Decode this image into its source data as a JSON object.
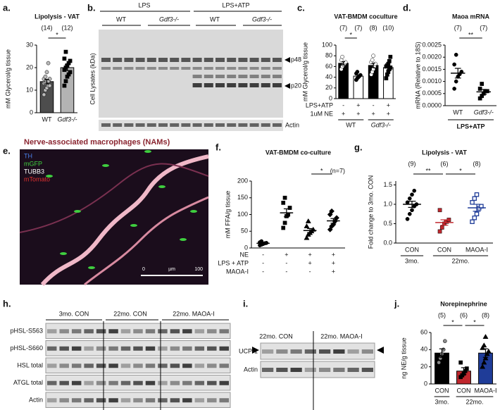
{
  "panel_labels": [
    "a.",
    "b.",
    "c.",
    "d.",
    "e.",
    "f.",
    "g.",
    "h.",
    "i.",
    "j."
  ],
  "chart_data": [
    {
      "type": "bar",
      "title": "Lipolysis - VAT",
      "ylabel": "mM Glycerol/g tissue",
      "categories": [
        "WT",
        "Gdf3-/-"
      ],
      "values": [
        13.8,
        20
      ],
      "errors": [
        1,
        1.3
      ],
      "points": [
        [
          8,
          10,
          11,
          12,
          12,
          13,
          13,
          14,
          14,
          15,
          15,
          16,
          18,
          22
        ],
        [
          12,
          14,
          16,
          17,
          18,
          19,
          20,
          21,
          22,
          23,
          24,
          27
        ]
      ],
      "n_labels": [
        "(14)",
        "(12)"
      ],
      "colors": [
        "#4d4d4d",
        "#b3b3b3"
      ],
      "point_colors": [
        "#bbbbbb",
        "#000000"
      ],
      "markers": [
        "circle",
        "square"
      ],
      "ylim": [
        0,
        30
      ],
      "yticks": [
        0,
        10,
        20,
        30
      ],
      "brackets": [
        {
          "label": "*",
          "bars": [
            0,
            1
          ]
        }
      ]
    },
    {
      "type": "bar",
      "title": "VAT-BMDM coculture",
      "ylabel": "mM Glycerol/g tissue",
      "values": [
        66,
        42,
        62,
        58
      ],
      "errors": [
        3,
        2,
        4,
        4
      ],
      "points": [
        [
          55,
          60,
          63,
          65,
          68,
          72,
          78
        ],
        [
          35,
          38,
          40,
          42,
          44,
          47,
          50
        ],
        [
          45,
          50,
          55,
          60,
          65,
          68,
          72,
          80
        ],
        [
          38,
          45,
          50,
          55,
          58,
          60,
          62,
          65,
          70,
          78
        ]
      ],
      "n_labels": [
        "(7)",
        "(7)",
        "(8)",
        "(10)"
      ],
      "colors": [
        "#000000",
        "#ffffff",
        "#000000",
        "#ffffff"
      ],
      "point_colors": [
        "#ffffff",
        "#000000",
        "#ffffff",
        "#000000"
      ],
      "markers": [
        "circle",
        "circle",
        "circle",
        "square"
      ],
      "ylim": [
        0,
        100
      ],
      "yticks": [
        0,
        20,
        40,
        60,
        80,
        100
      ],
      "brackets": [
        {
          "label": "*",
          "bars": [
            0,
            1
          ]
        }
      ],
      "treatments": [
        {
          "name": "LPS+ATP",
          "signs": [
            "-",
            "+",
            "-",
            "+"
          ]
        },
        {
          "name": "1uM NE",
          "signs": [
            "+",
            "+",
            "+",
            "+"
          ]
        }
      ],
      "groups": [
        {
          "label": "WT",
          "bars": [
            0,
            1
          ]
        },
        {
          "label": "Gdf3-/-",
          "bars": [
            2,
            3
          ]
        }
      ]
    },
    {
      "type": "dot",
      "title": "Maoa mRNA",
      "ylabel": "mRNA (Relative to 18S)",
      "xlabel": "LPS+ATP",
      "categories": [
        "WT",
        "Gdf3-/-"
      ],
      "values": [
        0.00134,
        0.00057
      ],
      "errors": [
        0.0002,
        0.0001
      ],
      "points": [
        [
          0.0007,
          0.001,
          0.0012,
          0.0013,
          0.0014,
          0.0017,
          0.0021
        ],
        [
          0.0003,
          0.0004,
          0.0005,
          0.0006,
          0.0006,
          0.0007,
          0.0009
        ]
      ],
      "n_labels": [
        "(7)",
        "(7)"
      ],
      "colors": [
        "#000000",
        "#000000"
      ],
      "markers": [
        "circle",
        "square"
      ],
      "ylim": [
        0,
        0.0025
      ],
      "yticks": [
        {
          "value": 0,
          "label": "0.0000"
        },
        0.0005,
        {
          "value": 0.001,
          "label": "0.0010"
        },
        0.0015,
        {
          "value": 0.002,
          "label": "0.0020"
        },
        0.0025
      ],
      "brackets": [
        {
          "label": "**",
          "bars": [
            0,
            1
          ]
        }
      ]
    },
    {
      "type": "dot",
      "title": "VAT-BMDM co-culture",
      "note": "(n=7)",
      "ylabel": "mM FFA/g tissue",
      "values": [
        14,
        105,
        52,
        81
      ],
      "errors": [
        2,
        12,
        6,
        7
      ],
      "points": [
        [
          8,
          10,
          12,
          14,
          15,
          17,
          20
        ],
        [
          60,
          75,
          95,
          100,
          120,
          135,
          150
        ],
        [
          30,
          40,
          45,
          50,
          55,
          65,
          80
        ],
        [
          55,
          65,
          70,
          80,
          90,
          100,
          110
        ]
      ],
      "colors": [
        "#000000",
        "#000000",
        "#000000",
        "#000000"
      ],
      "markers": [
        "circle",
        "square",
        "triangle",
        "diamond"
      ],
      "ylim": [
        0,
        200
      ],
      "yticks": [
        0,
        50,
        100,
        150,
        200
      ],
      "brackets": [
        {
          "label": "*",
          "bars": [
            2,
            3
          ]
        }
      ],
      "treatments": [
        {
          "name": "NE",
          "signs": [
            "-",
            "+",
            "+",
            "+"
          ]
        },
        {
          "name": "LPS + ATP",
          "signs": [
            "-",
            "-",
            "+",
            "+"
          ]
        },
        {
          "name": "MAOA-I",
          "signs": [
            "-",
            "-",
            "-",
            "+"
          ]
        }
      ]
    },
    {
      "type": "dot",
      "title": "Lipolysis - VAT",
      "ylabel": "Fold change to 3mo. CON",
      "categories": [
        "CON",
        "CON",
        "MAOA-I"
      ],
      "values": [
        1,
        0.53,
        0.91
      ],
      "errors": [
        0.08,
        0.07,
        0.09
      ],
      "points": [
        [
          0.62,
          0.75,
          0.85,
          0.95,
          1,
          1.05,
          1.15,
          1.25,
          1.35
        ],
        [
          0.3,
          0.4,
          0.5,
          0.55,
          0.6,
          0.85
        ],
        [
          0.55,
          0.65,
          0.75,
          0.9,
          0.95,
          1.05,
          1.15,
          1.25
        ]
      ],
      "n_labels": [
        "(9)",
        "(6)",
        "(8)"
      ],
      "colors": [
        "#000000",
        "#c0272d",
        "#1f3c98"
      ],
      "markers": [
        "circle",
        "square",
        "square"
      ],
      "hollow": [
        false,
        false,
        true
      ],
      "ylim": [
        0,
        1.6
      ],
      "yticks": [
        {
          "value": 0,
          "label": "0.0"
        },
        0.5,
        {
          "value": 1,
          "label": "1.0"
        },
        1.5
      ],
      "brackets": [
        {
          "label": "**",
          "bars": [
            0,
            1
          ]
        },
        {
          "label": "*",
          "bars": [
            1,
            2
          ]
        }
      ],
      "groups": [
        {
          "label": "3mo.",
          "bars": [
            0,
            0
          ]
        },
        {
          "label": "22mo.",
          "bars": [
            1,
            2
          ]
        }
      ]
    },
    {
      "type": "bar",
      "title": "Norepinephrine",
      "ylabel": "ng NE/g tissue",
      "categories": [
        "CON",
        "CON",
        "MAOA-I"
      ],
      "values": [
        36,
        15,
        36
      ],
      "errors": [
        5,
        4,
        5
      ],
      "points": [
        [
          25,
          30,
          35,
          40,
          50
        ],
        [
          8,
          10,
          12,
          15,
          18,
          25
        ],
        [
          20,
          25,
          30,
          35,
          38,
          42,
          45,
          55
        ]
      ],
      "n_labels": [
        "(5)",
        "(6)",
        "(8)"
      ],
      "colors": [
        "#000000",
        "#c0272d",
        "#1f3c98"
      ],
      "point_colors": [
        "#888888",
        "#000000",
        "#000000"
      ],
      "markers": [
        "circle",
        "square",
        "triangle"
      ],
      "ylim": [
        0,
        60
      ],
      "yticks": [
        0,
        20,
        40,
        60
      ],
      "brackets": [
        {
          "label": "*",
          "bars": [
            0,
            1
          ]
        },
        {
          "label": "*",
          "bars": [
            1,
            2
          ]
        }
      ],
      "groups": [
        {
          "label": "3mo.",
          "bars": [
            0,
            0
          ]
        },
        {
          "label": "22mo.",
          "bars": [
            1,
            2
          ]
        }
      ]
    }
  ],
  "blot_b": {
    "groups": [
      "LPS",
      "LPS+ATP"
    ],
    "genotypes": [
      "WT",
      "Gdf3-/-",
      "WT",
      "Gdf3-/-"
    ],
    "y_label": "Cell Lysates (kDa)",
    "bands": [
      "p48",
      "p20"
    ],
    "loading": "Actin"
  },
  "image_e": {
    "title": "Nerve-associated macrophages (NAMs)",
    "channels": [
      {
        "name": "TH",
        "color": "#4a7fe8"
      },
      {
        "name": "mGFP",
        "color": "#3fcf3f"
      },
      {
        "name": "TUBB3",
        "color": "#ffffff"
      },
      {
        "name": "mTomato",
        "color": "#e03030"
      }
    ],
    "scale_bar": [
      "0",
      "µm",
      "100"
    ]
  },
  "blot_h": {
    "groups": [
      "3mo. CON",
      "22mo. CON",
      "22mo. MAOA-I"
    ],
    "rows": [
      "pHSL-S563",
      "pHSL-S660",
      "HSL total",
      "ATGL total",
      "Actin"
    ]
  },
  "blot_i": {
    "groups": [
      "22mo. CON",
      "22mo. MAOA-I"
    ],
    "rows": [
      "UCP-1",
      "Actin"
    ]
  }
}
